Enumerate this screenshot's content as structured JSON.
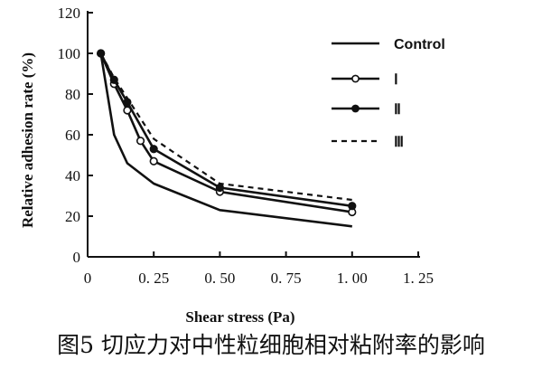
{
  "chart_data": {
    "type": "line",
    "xlabel": "Shear stress (Pa)",
    "ylabel": "Relative adhesion rate (%)",
    "xlim": [
      0,
      1.25
    ],
    "ylim": [
      0,
      120
    ],
    "xticks": [
      0,
      0.25,
      0.5,
      0.75,
      1.0,
      1.25
    ],
    "yticks": [
      0,
      20,
      40,
      60,
      80,
      100,
      120
    ],
    "xtick_labels": [
      "0",
      "0. 25",
      "0. 50",
      "0. 75",
      "1. 00",
      "1. 25"
    ],
    "ytick_labels": [
      "0",
      "20",
      "40",
      "60",
      "80",
      "100",
      "120"
    ],
    "grid": false,
    "legend_position": "top-right",
    "series": [
      {
        "name": "Control",
        "marker": "none",
        "dash": "solid",
        "x": [
          0.05,
          0.1,
          0.15,
          0.25,
          0.5,
          1.0
        ],
        "y": [
          100,
          60,
          46,
          36,
          23,
          15
        ]
      },
      {
        "name": "Ⅰ",
        "marker": "open-circle",
        "dash": "solid",
        "x": [
          0.05,
          0.1,
          0.15,
          0.2,
          0.25,
          0.5,
          1.0
        ],
        "y": [
          100,
          85,
          72,
          57,
          47,
          32,
          22
        ]
      },
      {
        "name": "Ⅱ",
        "marker": "filled-circle",
        "dash": "solid",
        "x": [
          0.05,
          0.1,
          0.15,
          0.25,
          0.5,
          1.0
        ],
        "y": [
          100,
          87,
          76,
          53,
          34,
          25
        ]
      },
      {
        "name": "Ⅲ",
        "marker": "none",
        "dash": "dashed",
        "x": [
          0.05,
          0.1,
          0.15,
          0.25,
          0.5,
          1.0
        ],
        "y": [
          100,
          88,
          78,
          58,
          36,
          28
        ]
      }
    ]
  },
  "caption": "图5 切应力对中性粒细胞相对粘附率的影响"
}
